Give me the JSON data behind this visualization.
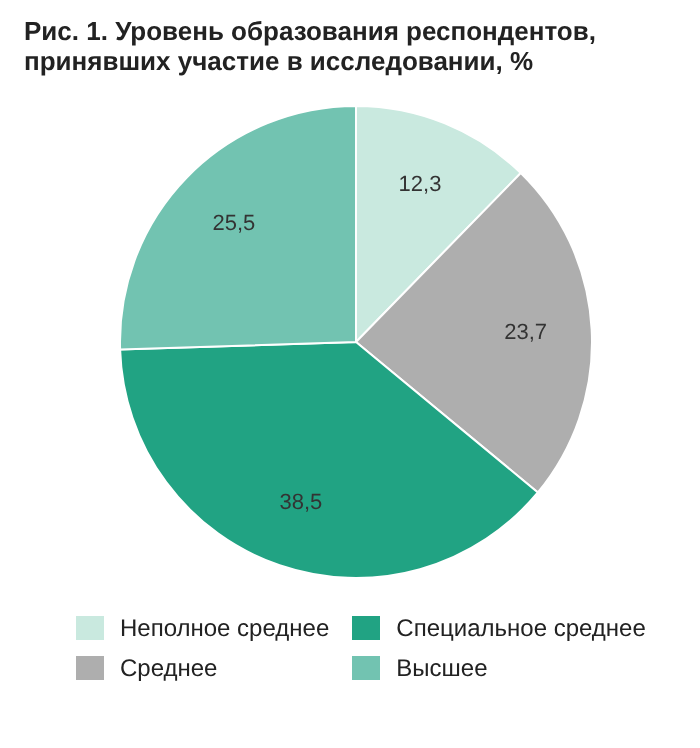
{
  "chart_data": {
    "type": "pie",
    "title": "Рис. 1. Уровень образования респондентов, принявших участие в исследовании, %",
    "categories": [
      "Неполное среднее",
      "Среднее",
      "Специальное среднее",
      "Высшее"
    ],
    "values": [
      12.3,
      23.7,
      38.5,
      25.5
    ],
    "value_labels": [
      "12,3",
      "23,7",
      "38,5",
      "25,5"
    ],
    "colors": [
      "#c9e9df",
      "#aeaeae",
      "#21a383",
      "#72c3b1"
    ],
    "legend": "bottom"
  }
}
